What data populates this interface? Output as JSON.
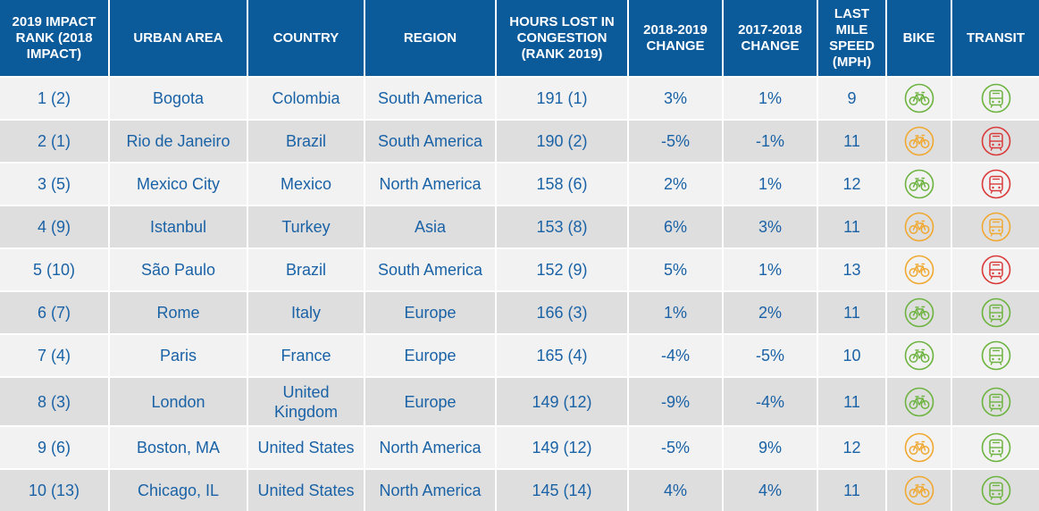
{
  "colors": {
    "header_bg": "#0b5a9a",
    "text": "#1a62a6",
    "green": "#6cb33f",
    "orange": "#f0a830",
    "red": "#d93a3a"
  },
  "headers": {
    "rank": "2019 IMPACT RANK (2018 IMPACT)",
    "urban_area": "URBAN AREA",
    "country": "COUNTRY",
    "region": "REGION",
    "hours_lost": "HOURS LOST IN CONGESTION (RANK 2019)",
    "change_1819": "2018-2019 CHANGE",
    "change_1718": "2017-2018 CHANGE",
    "last_mile": "LAST MILE SPEED (MPH)",
    "bike": "BIKE",
    "transit": "TRANSIT"
  },
  "rows": [
    {
      "rank": "1 (2)",
      "urban_area": "Bogota",
      "country": "Colombia",
      "region": "South America",
      "hours_lost": "191 (1)",
      "change_1819": "3%",
      "change_1718": "1%",
      "last_mile": "9",
      "bike_icon": "bike-icon",
      "bike_status": "green",
      "transit_icon": "transit-icon",
      "transit_status": "green"
    },
    {
      "rank": "2 (1)",
      "urban_area": "Rio de Janeiro",
      "country": "Brazil",
      "region": "South America",
      "hours_lost": "190 (2)",
      "change_1819": "-5%",
      "change_1718": "-1%",
      "last_mile": "11",
      "bike_icon": "bike-icon",
      "bike_status": "orange",
      "transit_icon": "transit-icon",
      "transit_status": "red"
    },
    {
      "rank": "3 (5)",
      "urban_area": "Mexico City",
      "country": "Mexico",
      "region": "North America",
      "hours_lost": "158 (6)",
      "change_1819": "2%",
      "change_1718": "1%",
      "last_mile": "12",
      "bike_icon": "bike-icon",
      "bike_status": "green",
      "transit_icon": "transit-icon",
      "transit_status": "red"
    },
    {
      "rank": "4 (9)",
      "urban_area": "Istanbul",
      "country": "Turkey",
      "region": "Asia",
      "hours_lost": "153 (8)",
      "change_1819": "6%",
      "change_1718": "3%",
      "last_mile": "11",
      "bike_icon": "bike-icon",
      "bike_status": "orange",
      "transit_icon": "transit-icon",
      "transit_status": "orange"
    },
    {
      "rank": "5 (10)",
      "urban_area": "São Paulo",
      "country": "Brazil",
      "region": "South America",
      "hours_lost": "152 (9)",
      "change_1819": "5%",
      "change_1718": "1%",
      "last_mile": "13",
      "bike_icon": "bike-icon",
      "bike_status": "orange",
      "transit_icon": "transit-icon",
      "transit_status": "red"
    },
    {
      "rank": "6 (7)",
      "urban_area": "Rome",
      "country": "Italy",
      "region": "Europe",
      "hours_lost": "166 (3)",
      "change_1819": "1%",
      "change_1718": "2%",
      "last_mile": "11",
      "bike_icon": "bike-icon",
      "bike_status": "green",
      "transit_icon": "transit-icon",
      "transit_status": "green"
    },
    {
      "rank": "7 (4)",
      "urban_area": "Paris",
      "country": "France",
      "region": "Europe",
      "hours_lost": "165 (4)",
      "change_1819": "-4%",
      "change_1718": "-5%",
      "last_mile": "10",
      "bike_icon": "bike-icon",
      "bike_status": "green",
      "transit_icon": "transit-icon",
      "transit_status": "green"
    },
    {
      "rank": "8 (3)",
      "urban_area": "London",
      "country": "United Kingdom",
      "region": "Europe",
      "hours_lost": "149 (12)",
      "change_1819": "-9%",
      "change_1718": "-4%",
      "last_mile": "11",
      "bike_icon": "bike-icon",
      "bike_status": "green",
      "transit_icon": "transit-icon",
      "transit_status": "green"
    },
    {
      "rank": "9 (6)",
      "urban_area": "Boston, MA",
      "country": "United States",
      "region": "North America",
      "hours_lost": "149 (12)",
      "change_1819": "-5%",
      "change_1718": "9%",
      "last_mile": "12",
      "bike_icon": "bike-icon",
      "bike_status": "orange",
      "transit_icon": "transit-icon",
      "transit_status": "green"
    },
    {
      "rank": "10 (13)",
      "urban_area": "Chicago, IL",
      "country": "United States",
      "region": "North America",
      "hours_lost": "145 (14)",
      "change_1819": "4%",
      "change_1718": "4%",
      "last_mile": "11",
      "bike_icon": "bike-icon",
      "bike_status": "orange",
      "transit_icon": "transit-icon",
      "transit_status": "green"
    }
  ]
}
